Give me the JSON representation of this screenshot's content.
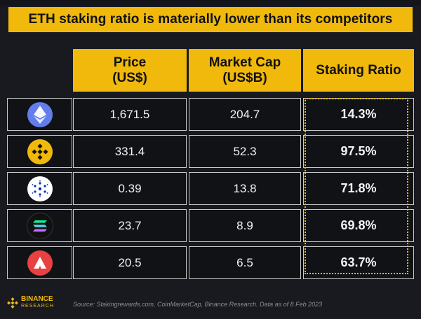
{
  "title": "ETH staking ratio is materially lower than its competitors",
  "chart_data": {
    "type": "table",
    "columns": [
      {
        "line1": "Price",
        "line2": "(US$)"
      },
      {
        "line1": "Market Cap",
        "line2": "(US$B)"
      },
      {
        "line1": "Staking Ratio",
        "line2": ""
      }
    ],
    "rows": [
      {
        "icon": "ethereum-icon",
        "color": "#627eea",
        "price": "1,671.5",
        "market_cap": "204.7",
        "staking_ratio": "14.3%"
      },
      {
        "icon": "bnb-icon",
        "color": "#f0b90b",
        "price": "331.4",
        "market_cap": "52.3",
        "staking_ratio": "97.5%"
      },
      {
        "icon": "cardano-icon",
        "color": "#ffffff",
        "price": "0.39",
        "market_cap": "13.8",
        "staking_ratio": "71.8%"
      },
      {
        "icon": "solana-icon",
        "color": "#7b5cf5",
        "price": "23.7",
        "market_cap": "8.9",
        "staking_ratio": "69.8%"
      },
      {
        "icon": "avalanche-icon",
        "color": "#e84142",
        "price": "20.5",
        "market_cap": "6.5",
        "staking_ratio": "63.7%"
      }
    ]
  },
  "footer": {
    "logo_word": "BINANCE",
    "logo_sub": "RESEARCH",
    "source": "Source: Stakingrewards.com, CoinMarketCap, Binance Research. Data as of 8 Feb 2023"
  },
  "colors": {
    "accent": "#f0b90b",
    "background": "#181a20"
  }
}
